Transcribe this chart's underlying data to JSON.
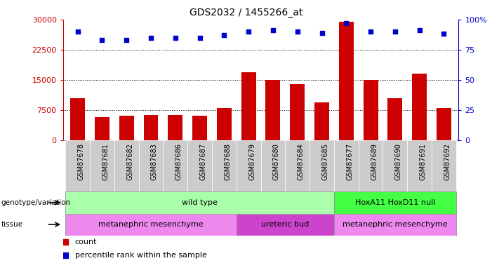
{
  "title": "GDS2032 / 1455266_at",
  "samples": [
    "GSM87678",
    "GSM87681",
    "GSM87682",
    "GSM87683",
    "GSM87686",
    "GSM87687",
    "GSM87688",
    "GSM87679",
    "GSM87680",
    "GSM87684",
    "GSM87685",
    "GSM87677",
    "GSM87689",
    "GSM87690",
    "GSM87691",
    "GSM87692"
  ],
  "counts": [
    10500,
    5800,
    6200,
    6300,
    6300,
    6200,
    8000,
    17000,
    15000,
    14000,
    9500,
    29500,
    15000,
    10500,
    16500,
    8000
  ],
  "percentiles": [
    90,
    83,
    83,
    85,
    85,
    85,
    87,
    90,
    91,
    90,
    89,
    97,
    90,
    90,
    91,
    88
  ],
  "bar_color": "#cc0000",
  "dot_color": "#0000cc",
  "ylim_left": [
    0,
    30000
  ],
  "ylim_right": [
    0,
    100
  ],
  "yticks_left": [
    0,
    7500,
    15000,
    22500,
    30000
  ],
  "yticks_right": [
    0,
    25,
    50,
    75,
    100
  ],
  "genotype_groups": [
    {
      "label": "wild type",
      "start": 0,
      "end": 10,
      "color": "#aaffaa"
    },
    {
      "label": "HoxA11 HoxD11 null",
      "start": 11,
      "end": 15,
      "color": "#44ff44"
    }
  ],
  "tissue_groups": [
    {
      "label": "metanephric mesenchyme",
      "start": 0,
      "end": 6,
      "color": "#ee88ee"
    },
    {
      "label": "ureteric bud",
      "start": 7,
      "end": 10,
      "color": "#cc44cc"
    },
    {
      "label": "metanephric mesenchyme",
      "start": 11,
      "end": 15,
      "color": "#ee88ee"
    }
  ],
  "left_axis_color": "#cc0000",
  "right_axis_color": "#0000cc",
  "tick_bg_color": "#cccccc",
  "border_color": "#888888"
}
